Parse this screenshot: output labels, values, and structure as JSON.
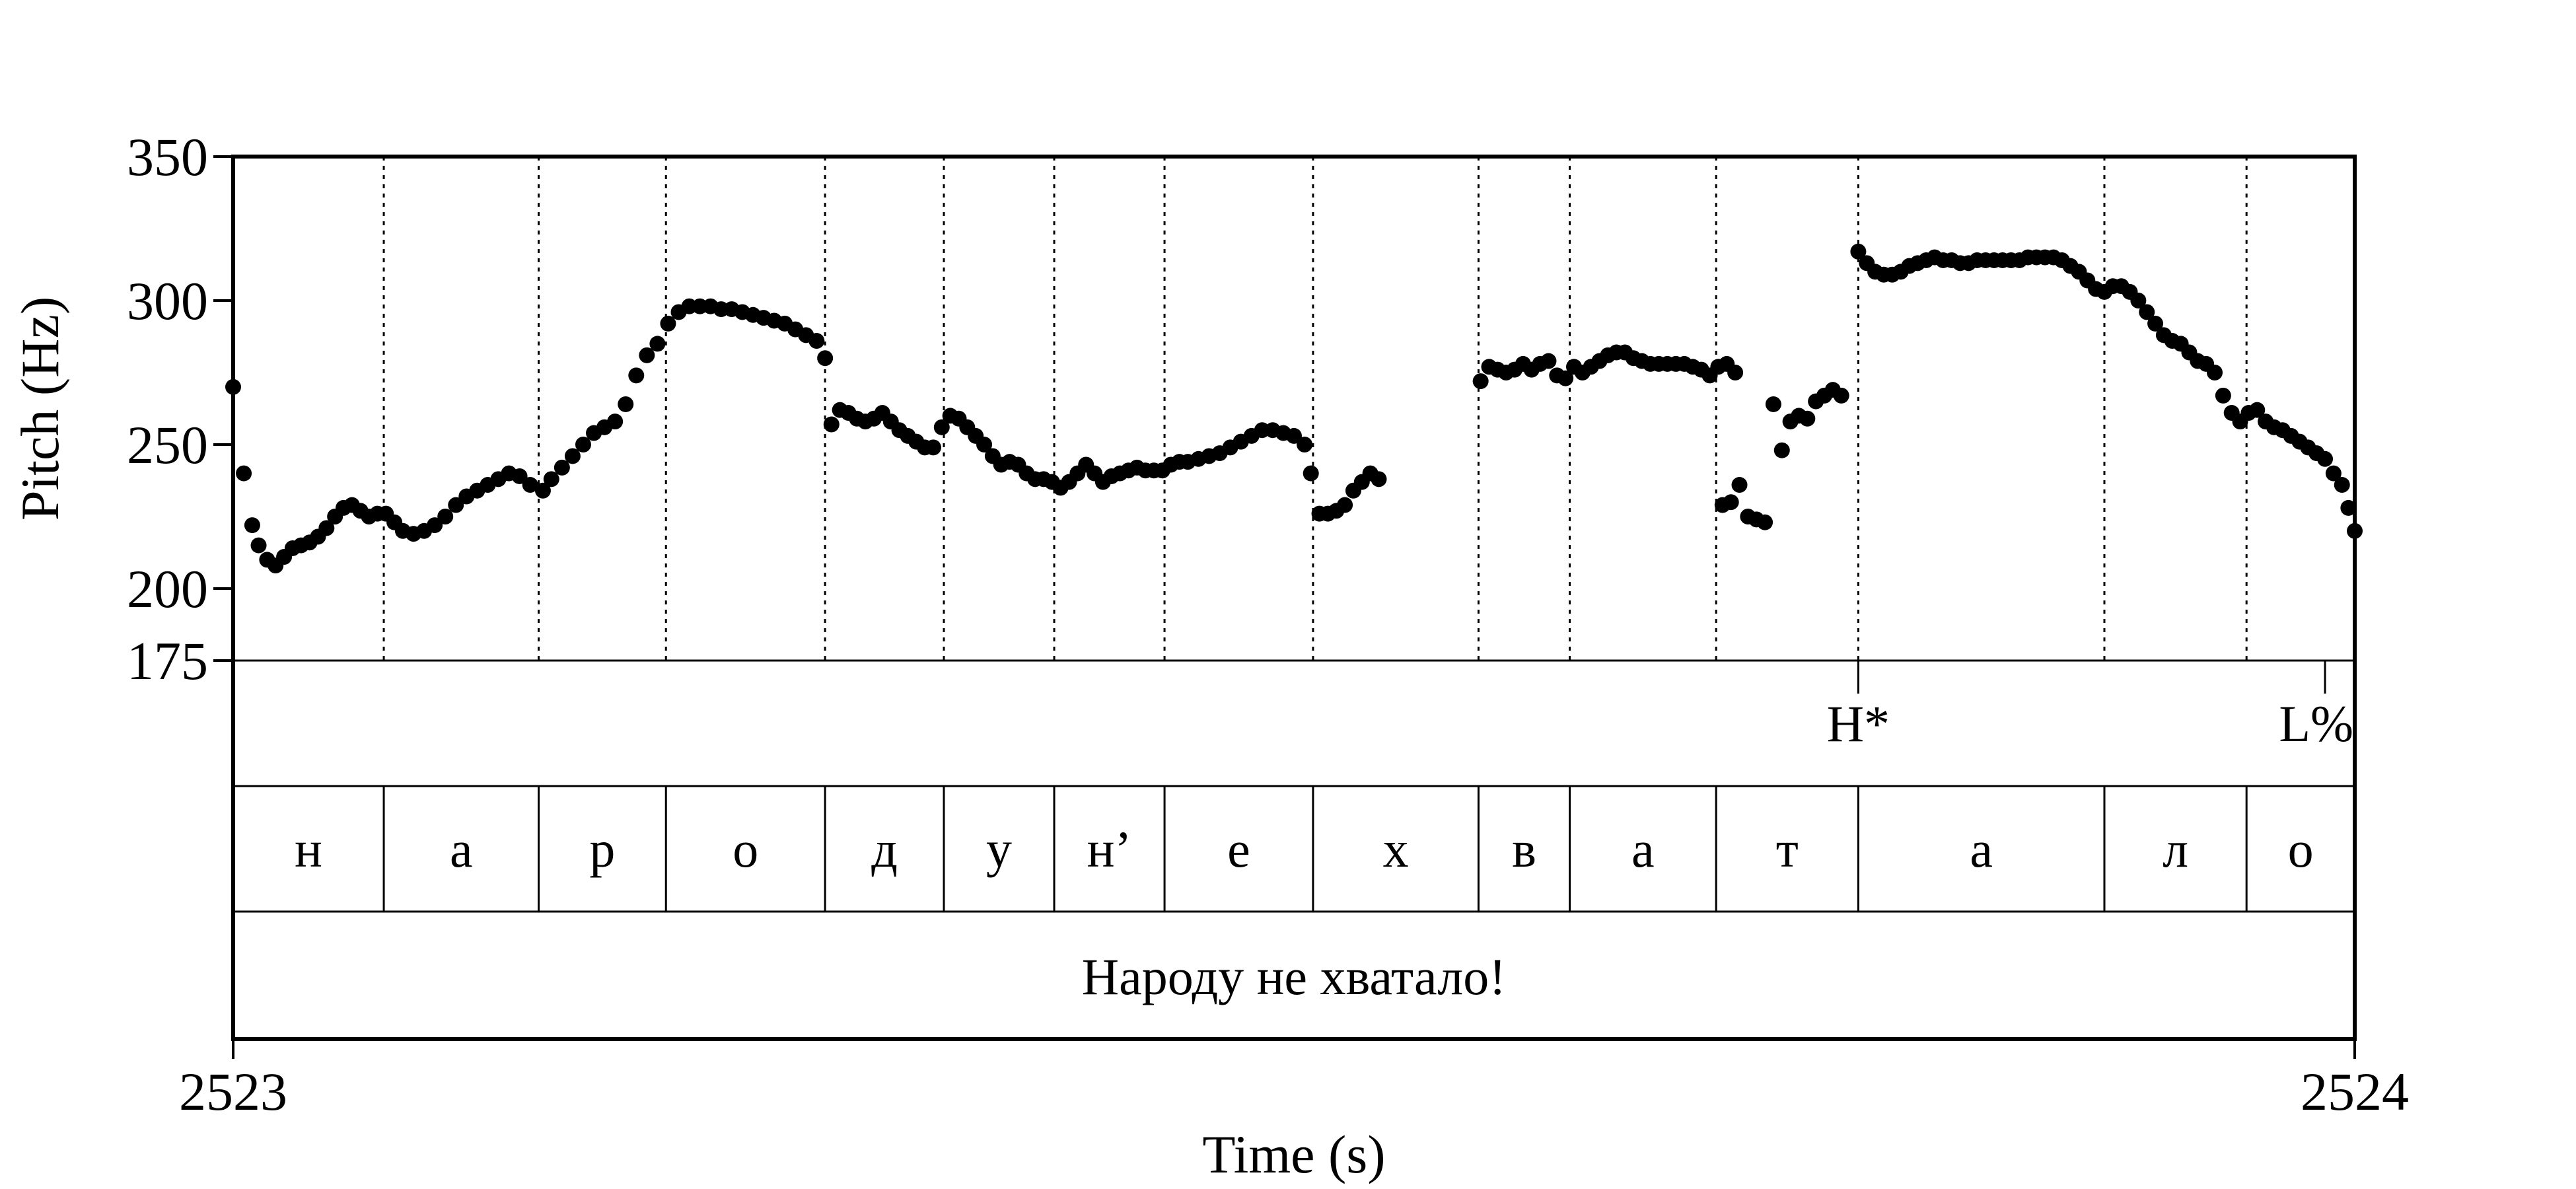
{
  "chart_data": {
    "type": "scatter",
    "xlabel": "Time (s)",
    "ylabel": "Pitch (Hz)",
    "xlim": [
      2523,
      2524
    ],
    "ylim": [
      175,
      350
    ],
    "x_ticks": [
      "2523",
      "2524"
    ],
    "y_ticks": [
      {
        "value": 350,
        "label": "350"
      },
      {
        "value": 300,
        "label": "300"
      },
      {
        "value": 250,
        "label": "250"
      },
      {
        "value": 200,
        "label": "200"
      },
      {
        "value": 175,
        "label": "175"
      }
    ],
    "segment_boundaries": [
      0.071,
      0.144,
      0.204,
      0.279,
      0.335,
      0.387,
      0.439,
      0.509,
      0.587,
      0.63,
      0.699,
      0.766,
      0.882,
      0.949
    ],
    "tones": [
      {
        "label": "H*",
        "time": 0.766
      },
      {
        "label": "L%",
        "time": 0.986
      }
    ],
    "segments": [
      {
        "label": "н",
        "start": 0.0,
        "end": 0.071
      },
      {
        "label": "а",
        "start": 0.071,
        "end": 0.144
      },
      {
        "label": "р",
        "start": 0.144,
        "end": 0.204
      },
      {
        "label": "о",
        "start": 0.204,
        "end": 0.279
      },
      {
        "label": "д",
        "start": 0.279,
        "end": 0.335
      },
      {
        "label": "у",
        "start": 0.335,
        "end": 0.387
      },
      {
        "label": "н’",
        "start": 0.387,
        "end": 0.439
      },
      {
        "label": "е",
        "start": 0.439,
        "end": 0.509
      },
      {
        "label": "х",
        "start": 0.509,
        "end": 0.587
      },
      {
        "label": "в",
        "start": 0.587,
        "end": 0.63
      },
      {
        "label": "а",
        "start": 0.63,
        "end": 0.699
      },
      {
        "label": "т",
        "start": 0.699,
        "end": 0.766
      },
      {
        "label": "а",
        "start": 0.766,
        "end": 0.882
      },
      {
        "label": "л",
        "start": 0.882,
        "end": 0.949
      },
      {
        "label": "о",
        "start": 0.949,
        "end": 1.0
      }
    ],
    "utterance": "Народу не хватало!",
    "pitch_contours": [
      [
        [
          0.0,
          270
        ],
        [
          0.005,
          240
        ],
        [
          0.009,
          222
        ],
        [
          0.012,
          215
        ],
        [
          0.016,
          210
        ],
        [
          0.02,
          208
        ],
        [
          0.024,
          211
        ],
        [
          0.028,
          214
        ],
        [
          0.032,
          215
        ],
        [
          0.036,
          216
        ],
        [
          0.04,
          218
        ],
        [
          0.044,
          221
        ],
        [
          0.048,
          225
        ],
        [
          0.052,
          228
        ],
        [
          0.056,
          229
        ],
        [
          0.06,
          227
        ],
        [
          0.064,
          225
        ],
        [
          0.068,
          226
        ],
        [
          0.072,
          226
        ],
        [
          0.076,
          223
        ],
        [
          0.08,
          220
        ],
        [
          0.085,
          219
        ],
        [
          0.09,
          220
        ],
        [
          0.095,
          222
        ],
        [
          0.1,
          225
        ],
        [
          0.105,
          229
        ],
        [
          0.11,
          232
        ],
        [
          0.115,
          234
        ],
        [
          0.12,
          236
        ],
        [
          0.125,
          238
        ],
        [
          0.13,
          240
        ],
        [
          0.135,
          239
        ],
        [
          0.14,
          236
        ],
        [
          0.146,
          234
        ],
        [
          0.15,
          238
        ],
        [
          0.155,
          242
        ],
        [
          0.16,
          246
        ],
        [
          0.165,
          250
        ],
        [
          0.17,
          254
        ],
        [
          0.175,
          256
        ],
        [
          0.18,
          258
        ],
        [
          0.185,
          264
        ],
        [
          0.19,
          274
        ],
        [
          0.195,
          281
        ],
        [
          0.2,
          285
        ],
        [
          0.205,
          292
        ],
        [
          0.21,
          296
        ],
        [
          0.215,
          298
        ],
        [
          0.22,
          298
        ],
        [
          0.225,
          298
        ],
        [
          0.23,
          297
        ],
        [
          0.235,
          297
        ],
        [
          0.24,
          296
        ],
        [
          0.245,
          295
        ],
        [
          0.25,
          294
        ],
        [
          0.255,
          293
        ],
        [
          0.26,
          292
        ],
        [
          0.265,
          290
        ],
        [
          0.27,
          288
        ],
        [
          0.275,
          286
        ],
        [
          0.279,
          280
        ]
      ],
      [
        [
          0.282,
          257
        ],
        [
          0.286,
          262
        ],
        [
          0.29,
          261
        ],
        [
          0.294,
          259
        ],
        [
          0.298,
          258
        ],
        [
          0.302,
          259
        ],
        [
          0.306,
          261
        ],
        [
          0.31,
          258
        ],
        [
          0.314,
          255
        ],
        [
          0.318,
          253
        ],
        [
          0.322,
          251
        ],
        [
          0.326,
          249
        ],
        [
          0.33,
          249
        ],
        [
          0.334,
          256
        ],
        [
          0.338,
          260
        ],
        [
          0.342,
          259
        ],
        [
          0.346,
          256
        ],
        [
          0.35,
          253
        ],
        [
          0.354,
          250
        ],
        [
          0.358,
          246
        ],
        [
          0.362,
          243
        ],
        [
          0.366,
          244
        ],
        [
          0.37,
          243
        ],
        [
          0.374,
          240
        ],
        [
          0.378,
          238
        ],
        [
          0.382,
          238
        ],
        [
          0.386,
          237
        ],
        [
          0.39,
          235
        ],
        [
          0.394,
          237
        ],
        [
          0.398,
          240
        ],
        [
          0.402,
          243
        ],
        [
          0.406,
          240
        ],
        [
          0.41,
          237
        ],
        [
          0.414,
          239
        ],
        [
          0.418,
          240
        ],
        [
          0.422,
          241
        ],
        [
          0.426,
          242
        ],
        [
          0.43,
          241
        ],
        [
          0.434,
          241
        ],
        [
          0.438,
          241
        ],
        [
          0.442,
          243
        ],
        [
          0.446,
          244
        ],
        [
          0.45,
          244
        ],
        [
          0.455,
          245
        ],
        [
          0.46,
          246
        ],
        [
          0.465,
          247
        ],
        [
          0.47,
          249
        ],
        [
          0.475,
          251
        ],
        [
          0.48,
          253
        ],
        [
          0.485,
          255
        ],
        [
          0.49,
          255
        ],
        [
          0.495,
          254
        ],
        [
          0.5,
          253
        ],
        [
          0.505,
          250
        ]
      ],
      [
        [
          0.508,
          240
        ],
        [
          0.512,
          226
        ],
        [
          0.516,
          226
        ],
        [
          0.52,
          227
        ],
        [
          0.524,
          229
        ],
        [
          0.528,
          234
        ],
        [
          0.532,
          237
        ],
        [
          0.536,
          240
        ],
        [
          0.54,
          238
        ]
      ],
      [
        [
          0.588,
          272
        ],
        [
          0.592,
          277
        ],
        [
          0.596,
          276
        ],
        [
          0.6,
          275
        ],
        [
          0.604,
          276
        ],
        [
          0.608,
          278
        ],
        [
          0.612,
          276
        ],
        [
          0.616,
          278
        ],
        [
          0.62,
          279
        ],
        [
          0.624,
          274
        ],
        [
          0.628,
          273
        ],
        [
          0.632,
          277
        ],
        [
          0.636,
          275
        ],
        [
          0.64,
          277
        ],
        [
          0.644,
          279
        ],
        [
          0.648,
          281
        ],
        [
          0.652,
          282
        ],
        [
          0.656,
          282
        ],
        [
          0.66,
          280
        ],
        [
          0.664,
          279
        ],
        [
          0.668,
          278
        ],
        [
          0.672,
          278
        ],
        [
          0.676,
          278
        ],
        [
          0.68,
          278
        ],
        [
          0.684,
          278
        ],
        [
          0.688,
          277
        ],
        [
          0.692,
          276
        ],
        [
          0.696,
          274
        ],
        [
          0.7,
          277
        ],
        [
          0.704,
          278
        ],
        [
          0.708,
          275
        ]
      ],
      [
        [
          0.702,
          229
        ],
        [
          0.706,
          230
        ],
        [
          0.71,
          236
        ],
        [
          0.714,
          225
        ],
        [
          0.718,
          224
        ],
        [
          0.722,
          223
        ],
        [
          0.726,
          264
        ],
        [
          0.73,
          248
        ],
        [
          0.734,
          258
        ],
        [
          0.738,
          260
        ],
        [
          0.742,
          259
        ],
        [
          0.746,
          265
        ],
        [
          0.75,
          267
        ],
        [
          0.754,
          269
        ],
        [
          0.758,
          267
        ]
      ],
      [
        [
          0.766,
          317
        ],
        [
          0.77,
          313
        ],
        [
          0.774,
          310
        ],
        [
          0.778,
          309
        ],
        [
          0.782,
          309
        ],
        [
          0.786,
          310
        ],
        [
          0.79,
          312
        ],
        [
          0.794,
          313
        ],
        [
          0.798,
          314
        ],
        [
          0.802,
          315
        ],
        [
          0.806,
          314
        ],
        [
          0.81,
          314
        ],
        [
          0.814,
          313
        ],
        [
          0.818,
          313
        ],
        [
          0.822,
          314
        ],
        [
          0.826,
          314
        ],
        [
          0.83,
          314
        ],
        [
          0.834,
          314
        ],
        [
          0.838,
          314
        ],
        [
          0.842,
          314
        ],
        [
          0.846,
          315
        ],
        [
          0.85,
          315
        ],
        [
          0.854,
          315
        ],
        [
          0.858,
          315
        ],
        [
          0.862,
          314
        ],
        [
          0.866,
          312
        ],
        [
          0.87,
          310
        ],
        [
          0.874,
          307
        ],
        [
          0.878,
          304
        ],
        [
          0.882,
          303
        ],
        [
          0.886,
          305
        ],
        [
          0.89,
          305
        ],
        [
          0.894,
          303
        ],
        [
          0.898,
          300
        ],
        [
          0.902,
          296
        ],
        [
          0.906,
          292
        ],
        [
          0.91,
          288
        ],
        [
          0.914,
          286
        ],
        [
          0.918,
          285
        ],
        [
          0.922,
          282
        ],
        [
          0.926,
          279
        ],
        [
          0.93,
          278
        ],
        [
          0.934,
          275
        ],
        [
          0.938,
          267
        ],
        [
          0.942,
          261
        ],
        [
          0.946,
          258
        ],
        [
          0.95,
          261
        ],
        [
          0.954,
          262
        ],
        [
          0.958,
          258
        ],
        [
          0.962,
          256
        ],
        [
          0.966,
          255
        ],
        [
          0.97,
          253
        ],
        [
          0.974,
          251
        ],
        [
          0.978,
          249
        ],
        [
          0.982,
          247
        ],
        [
          0.986,
          245
        ],
        [
          0.99,
          240
        ],
        [
          0.994,
          236
        ],
        [
          0.997,
          228
        ],
        [
          1.0,
          220
        ]
      ]
    ]
  }
}
